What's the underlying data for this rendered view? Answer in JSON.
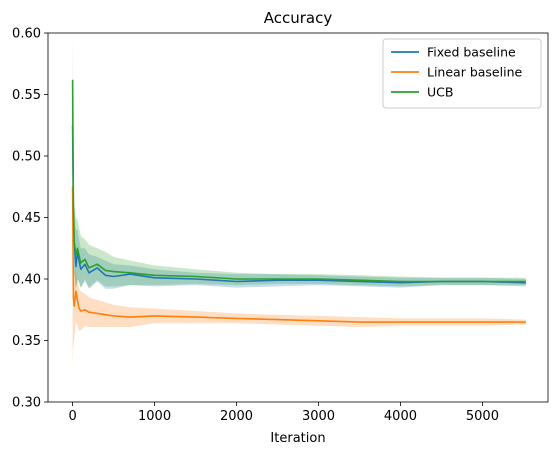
{
  "chart_data": {
    "type": "line",
    "title": "Accuracy",
    "xlabel": "Iteration",
    "ylabel": "",
    "xlim": [
      -300,
      5800
    ],
    "ylim": [
      0.3,
      0.6
    ],
    "xticks": [
      0,
      1000,
      2000,
      3000,
      4000,
      5000
    ],
    "yticks": [
      0.3,
      0.35,
      0.4,
      0.45,
      0.5,
      0.55,
      0.6
    ],
    "xtick_labels": [
      "0",
      "1000",
      "2000",
      "3000",
      "4000",
      "5000"
    ],
    "ytick_labels": [
      "0.30",
      "0.35",
      "0.40",
      "0.45",
      "0.50",
      "0.55",
      "0.60"
    ],
    "legend_position": "top-right",
    "grid": false,
    "series": [
      {
        "name": "Fixed baseline",
        "color": "#1f77b4",
        "x": [
          0,
          10,
          20,
          40,
          60,
          80,
          100,
          150,
          200,
          300,
          400,
          500,
          700,
          1000,
          1500,
          2000,
          2500,
          3000,
          3500,
          4000,
          4500,
          5000,
          5530
        ],
        "y": [
          0.525,
          0.45,
          0.43,
          0.41,
          0.422,
          0.415,
          0.408,
          0.412,
          0.405,
          0.409,
          0.403,
          0.402,
          0.404,
          0.401,
          0.4,
          0.398,
          0.399,
          0.399,
          0.398,
          0.397,
          0.398,
          0.398,
          0.397
        ],
        "band_upper": [
          0.56,
          0.47,
          0.455,
          0.44,
          0.44,
          0.432,
          0.425,
          0.425,
          0.42,
          0.418,
          0.415,
          0.412,
          0.411,
          0.408,
          0.405,
          0.404,
          0.404,
          0.403,
          0.402,
          0.401,
          0.401,
          0.401,
          0.4
        ],
        "band_lower": [
          0.49,
          0.43,
          0.405,
          0.39,
          0.4,
          0.398,
          0.393,
          0.398,
          0.392,
          0.398,
          0.392,
          0.392,
          0.395,
          0.394,
          0.395,
          0.393,
          0.394,
          0.395,
          0.394,
          0.393,
          0.395,
          0.395,
          0.394
        ]
      },
      {
        "name": "Linear baseline",
        "color": "#ff7f0e",
        "x": [
          0,
          10,
          20,
          40,
          60,
          80,
          100,
          150,
          200,
          300,
          400,
          500,
          700,
          1000,
          1500,
          2000,
          2500,
          3000,
          3500,
          4000,
          4500,
          5000,
          5530
        ],
        "y": [
          0.475,
          0.385,
          0.378,
          0.39,
          0.382,
          0.376,
          0.374,
          0.375,
          0.373,
          0.372,
          0.371,
          0.37,
          0.369,
          0.37,
          0.369,
          0.368,
          0.367,
          0.366,
          0.365,
          0.365,
          0.365,
          0.365,
          0.365
        ],
        "band_upper": [
          0.51,
          0.42,
          0.405,
          0.408,
          0.4,
          0.392,
          0.39,
          0.388,
          0.385,
          0.383,
          0.381,
          0.379,
          0.377,
          0.376,
          0.374,
          0.372,
          0.371,
          0.37,
          0.369,
          0.368,
          0.368,
          0.368,
          0.367
        ],
        "band_lower": [
          0.33,
          0.345,
          0.35,
          0.365,
          0.362,
          0.358,
          0.358,
          0.362,
          0.361,
          0.361,
          0.361,
          0.361,
          0.361,
          0.364,
          0.364,
          0.364,
          0.363,
          0.362,
          0.361,
          0.362,
          0.362,
          0.362,
          0.363
        ]
      },
      {
        "name": "UCB",
        "color": "#2ca02c",
        "x": [
          0,
          10,
          20,
          40,
          60,
          80,
          100,
          150,
          200,
          300,
          400,
          500,
          700,
          1000,
          1500,
          2000,
          2500,
          3000,
          3500,
          4000,
          4500,
          5000,
          5530
        ],
        "y": [
          0.562,
          0.46,
          0.43,
          0.42,
          0.425,
          0.419,
          0.413,
          0.416,
          0.409,
          0.412,
          0.407,
          0.406,
          0.405,
          0.403,
          0.402,
          0.4,
          0.4,
          0.4,
          0.399,
          0.398,
          0.398,
          0.398,
          0.398
        ],
        "band_upper": [
          0.6,
          0.48,
          0.46,
          0.45,
          0.448,
          0.442,
          0.435,
          0.432,
          0.428,
          0.425,
          0.422,
          0.418,
          0.415,
          0.411,
          0.408,
          0.405,
          0.404,
          0.404,
          0.403,
          0.402,
          0.401,
          0.401,
          0.401
        ],
        "band_lower": [
          0.52,
          0.44,
          0.405,
          0.392,
          0.4,
          0.396,
          0.393,
          0.4,
          0.393,
          0.399,
          0.394,
          0.394,
          0.395,
          0.395,
          0.396,
          0.395,
          0.396,
          0.396,
          0.395,
          0.394,
          0.395,
          0.395,
          0.395
        ]
      }
    ]
  }
}
